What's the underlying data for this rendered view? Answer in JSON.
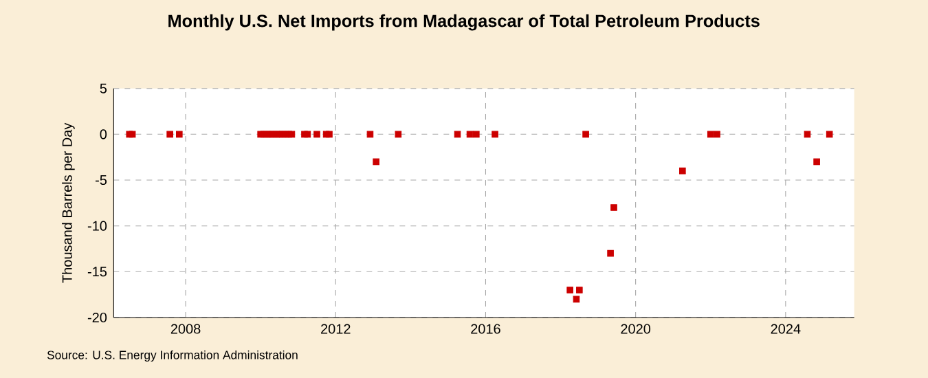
{
  "chart_data": {
    "type": "scatter",
    "title": "Monthly U.S. Net Imports from Madagascar of Total Petroleum Products",
    "ylabel": "Thousand Barrels per Day",
    "annotations": [
      "Source: U.S. Energy Information Administration"
    ],
    "x": [
      "2006-07",
      "2006-08",
      "2007-08",
      "2007-11",
      "2010-01",
      "2010-02",
      "2010-03",
      "2010-04",
      "2010-05",
      "2010-06",
      "2010-07",
      "2010-08",
      "2010-09",
      "2010-10",
      "2010-11",
      "2011-03",
      "2011-04",
      "2011-07",
      "2011-10",
      "2011-11",
      "2012-12",
      "2013-02",
      "2013-09",
      "2015-04",
      "2015-08",
      "2015-10",
      "2016-04",
      "2018-04",
      "2018-06",
      "2018-07",
      "2018-09",
      "2019-05",
      "2019-06",
      "2021-04",
      "2022-01",
      "2022-03",
      "2024-08",
      "2024-11",
      "2025-03"
    ],
    "series": [
      {
        "color": "#cc0000",
        "values": [
          0,
          0,
          0,
          0,
          0,
          0,
          0,
          0,
          0,
          0,
          0,
          0,
          0,
          0,
          0,
          0,
          0,
          0,
          0,
          0,
          0,
          -3,
          0,
          0,
          0,
          0,
          0,
          -17,
          -18,
          -17,
          0,
          -13,
          -8,
          -4,
          0,
          0,
          0,
          -3,
          0
        ]
      }
    ],
    "xlim": [
      "2006-02",
      "2025-11"
    ],
    "xticks": [
      "2008",
      "2012",
      "2016",
      "2020",
      "2024"
    ],
    "ylim": [
      -20,
      5
    ],
    "yticks": [
      -20,
      -15,
      -10,
      -5,
      0,
      5
    ],
    "grid": true,
    "marker": "square"
  }
}
